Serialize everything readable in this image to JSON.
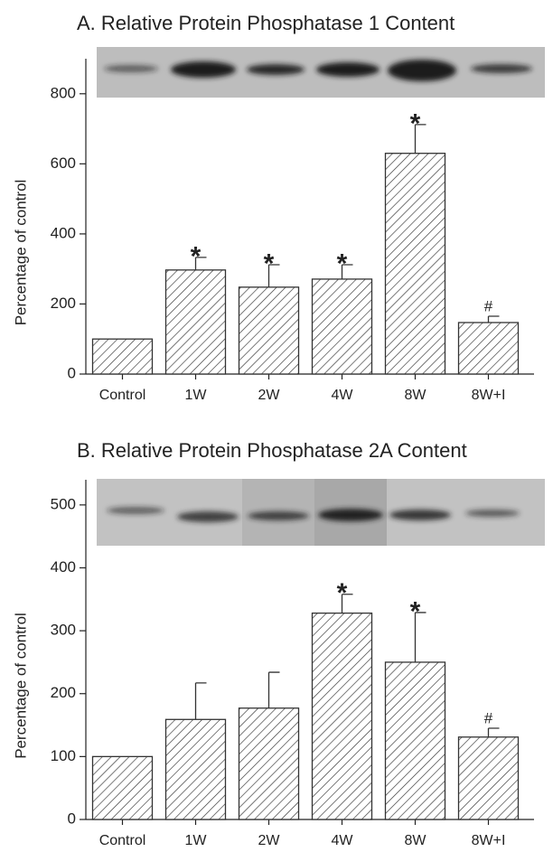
{
  "chart_data": [
    {
      "type": "bar",
      "title": "A. Relative Protein Phosphatase 1 Content",
      "y_label": "Percentage of control",
      "categories": [
        "Control",
        "1W",
        "2W",
        "4W",
        "8W",
        "8W+I"
      ],
      "values": [
        100,
        297,
        248,
        271,
        630,
        147
      ],
      "errors": [
        null,
        36,
        64,
        41,
        82,
        18
      ],
      "annotations": [
        null,
        "*",
        "*",
        "*",
        "*",
        "#"
      ],
      "color": "#333333",
      "hatch": true,
      "ylim": [
        0,
        900
      ],
      "yticks": [
        0,
        200,
        400,
        600,
        800
      ]
    },
    {
      "type": "bar",
      "title": "B. Relative Protein Phosphatase 2A Content",
      "y_label": "Percentage of control",
      "categories": [
        "Control",
        "1W",
        "2W",
        "4W",
        "8W",
        "8W+I"
      ],
      "values": [
        100,
        159,
        177,
        328,
        250,
        131
      ],
      "errors": [
        null,
        58,
        57,
        30,
        79,
        14
      ],
      "annotations": [
        null,
        null,
        null,
        "*",
        "*",
        "#"
      ],
      "color": "#333333",
      "hatch": true,
      "ylim": [
        0,
        540
      ],
      "yticks": [
        0,
        100,
        200,
        300,
        400,
        500
      ]
    }
  ]
}
